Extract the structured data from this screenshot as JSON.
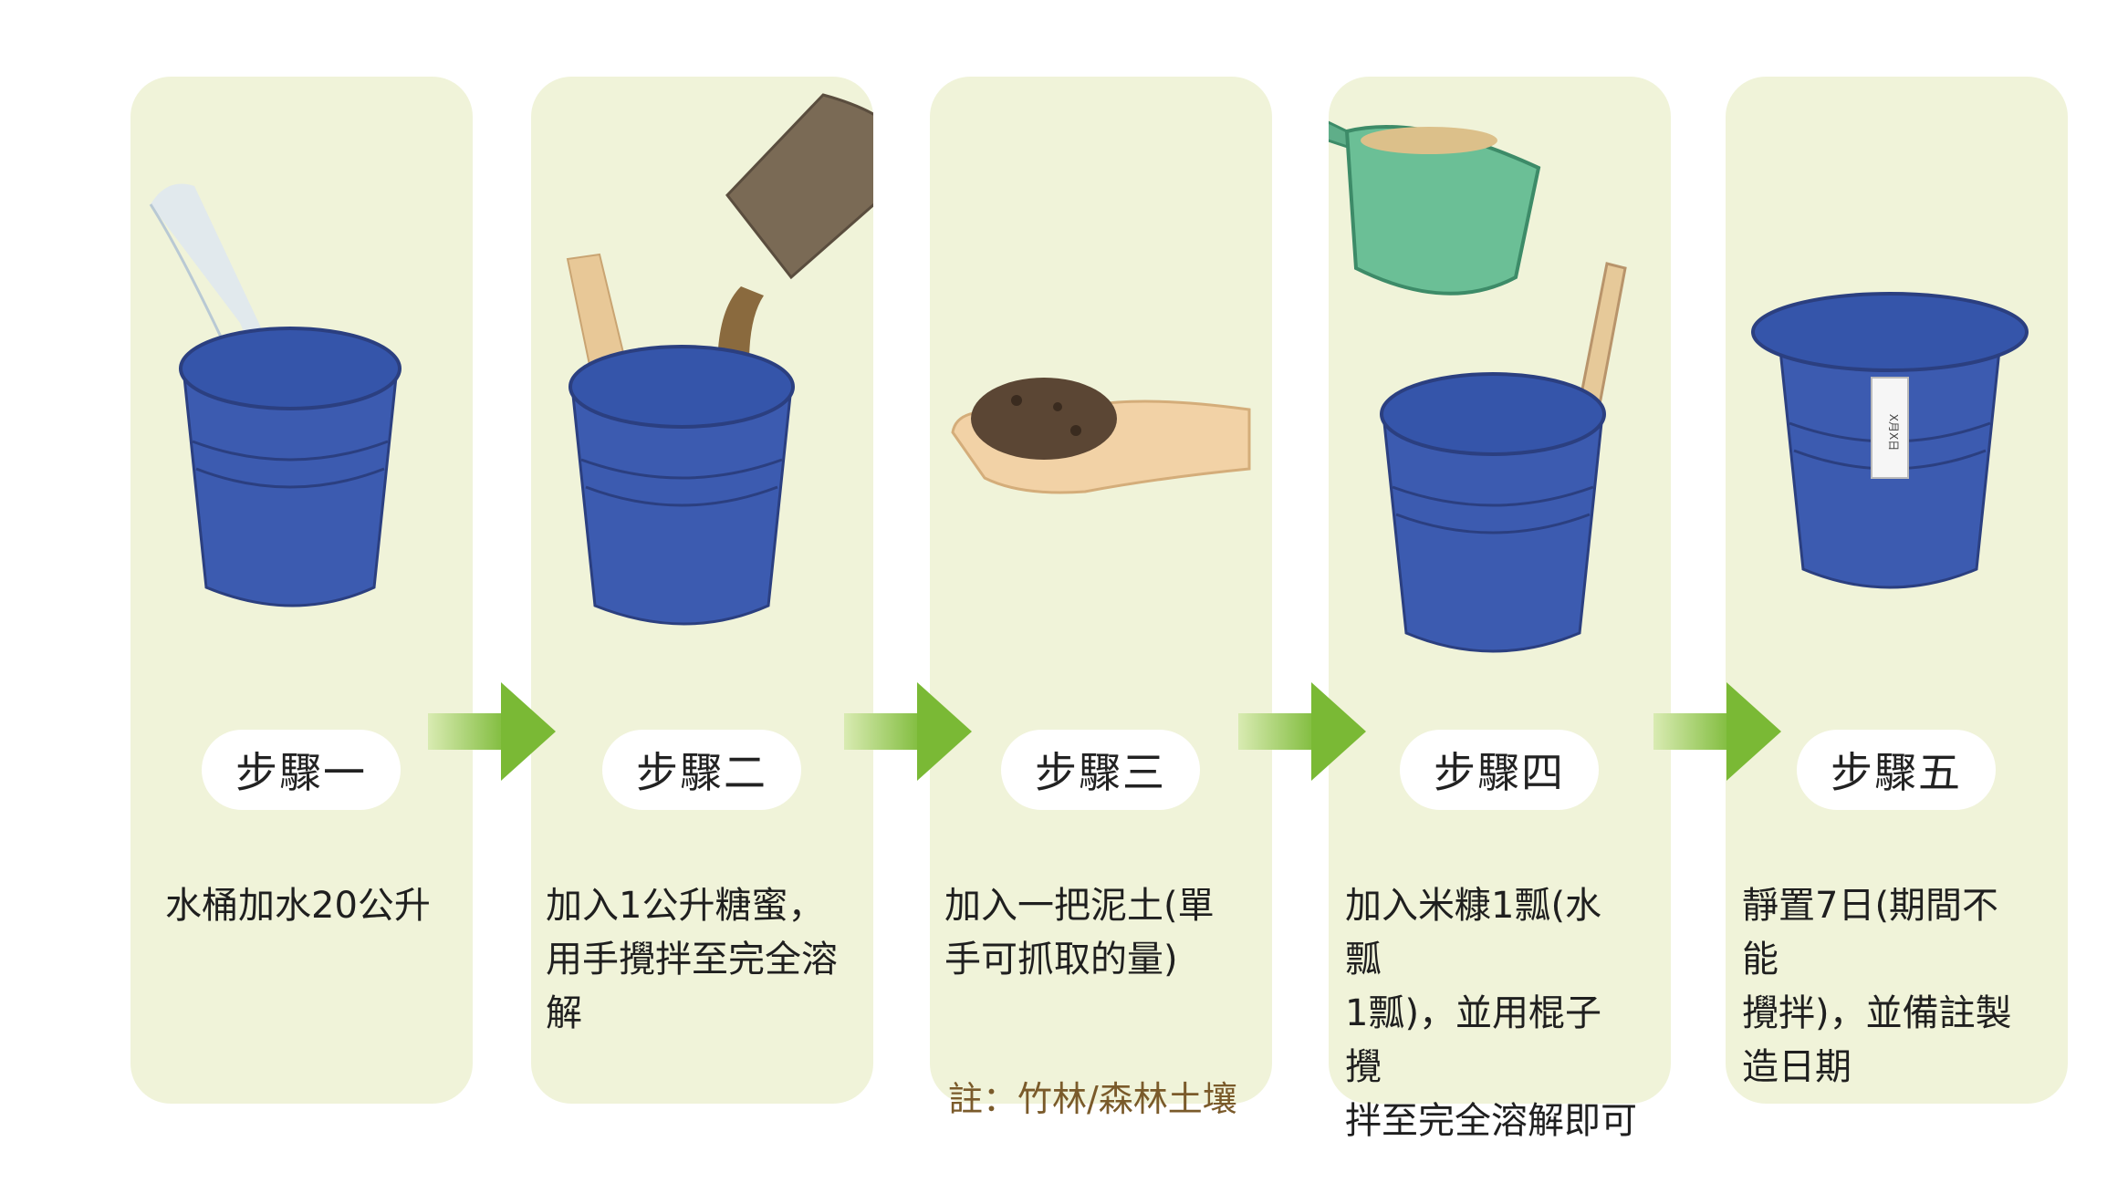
{
  "steps": [
    {
      "label": "步驟一",
      "lines": [
        "水桶加水20公升"
      ]
    },
    {
      "label": "步驟二",
      "lines": [
        "加入1公升糖蜜，",
        "用手攪拌至完全溶",
        "解"
      ]
    },
    {
      "label": "步驟三",
      "lines": [
        "加入一把泥土(單",
        "手可抓取的量)"
      ],
      "note": "註：竹林/森林土壤"
    },
    {
      "label": "步驟四",
      "lines": [
        "加入米糠1瓢(水瓢",
        "1瓢)，並用棍子攪",
        "拌至完全溶解即可"
      ]
    },
    {
      "label": "步驟五",
      "lines": [
        "靜置7日(期間不能",
        "攪拌)，並備註製",
        "造日期"
      ]
    }
  ],
  "tag_text": "X月X日",
  "colors": {
    "card": "#f0f3d9",
    "bucket": "#3c5bb0",
    "arrow": "#8cc63f",
    "note": "#7a5a2a"
  }
}
